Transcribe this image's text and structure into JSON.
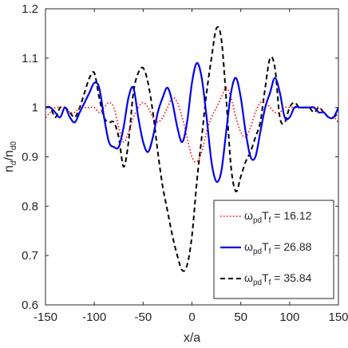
{
  "chart_data": {
    "type": "line",
    "xlabel": "x/a",
    "ylabel": "n_d/n_d0",
    "ylabel_main": "n",
    "ylabel_sub": "d",
    "ylabel_sep": "/n",
    "ylabel_sub2": "d0",
    "xlim": [
      -150,
      150
    ],
    "ylim": [
      0.6,
      1.2
    ],
    "xticks": [
      -150,
      -100,
      -50,
      0,
      50,
      100,
      150
    ],
    "yticks": [
      0.6,
      0.7,
      0.8,
      0.9,
      1.0,
      1.1,
      1.2
    ],
    "xtick_labels": [
      "-150",
      "-100",
      "-50",
      "0",
      "50",
      "100",
      "150"
    ],
    "ytick_labels": [
      "0.6",
      "0.7",
      "0.8",
      "0.9",
      "1",
      "1.1",
      "1.2"
    ],
    "grid": false,
    "legend_position": "bottom-right",
    "series": [
      {
        "name": "ω_pd T_f = 16.12",
        "legend_main": "ω",
        "legend_sub1": "pd",
        "legend_mid": "T",
        "legend_sub2": "f",
        "legend_value": "= 16.12",
        "color": "#ff0000",
        "style": "dotted",
        "x": [
          -150,
          -145,
          -140,
          -135,
          -130,
          -125,
          -120,
          -115,
          -110,
          -105,
          -100,
          -95,
          -90,
          -85,
          -80,
          -75,
          -70,
          -65,
          -60,
          -55,
          -50,
          -45,
          -40,
          -35,
          -30,
          -25,
          -20,
          -15,
          -10,
          -5,
          0,
          5,
          10,
          15,
          20,
          25,
          30,
          35,
          40,
          45,
          50,
          55,
          60,
          65,
          70,
          75,
          80,
          85,
          90,
          95,
          100,
          105,
          110,
          115,
          120,
          125,
          130,
          135,
          140,
          145,
          150
        ],
        "y": [
          0.98,
          0.99,
          1.0,
          1.0,
          1.0,
          0.99,
          0.99,
          1.0,
          1.0,
          1.0,
          1.0,
          0.99,
          1.0,
          1.01,
          1.0,
          0.96,
          0.93,
          0.95,
          0.98,
          1.0,
          1.01,
          1.0,
          0.98,
          0.97,
          0.98,
          1.0,
          1.02,
          1.01,
          0.98,
          0.94,
          0.9,
          0.89,
          0.91,
          0.95,
          0.98,
          1.0,
          1.02,
          1.04,
          1.02,
          0.98,
          0.95,
          0.94,
          0.96,
          0.99,
          1.01,
          1.01,
          1.0,
          0.99,
          0.99,
          1.0,
          1.0,
          1.0,
          1.0,
          1.0,
          1.0,
          1.0,
          1.0,
          0.99,
          0.98,
          0.98,
          0.97
        ]
      },
      {
        "name": "ω_pd T_f = 26.88",
        "legend_main": "ω",
        "legend_sub1": "pd",
        "legend_mid": "T",
        "legend_sub2": "f",
        "legend_value": "= 26.88",
        "color": "#0000ee",
        "style": "solid",
        "x": [
          -150,
          -145,
          -140,
          -135,
          -130,
          -125,
          -120,
          -115,
          -110,
          -105,
          -100,
          -95,
          -90,
          -85,
          -80,
          -75,
          -70,
          -65,
          -60,
          -55,
          -50,
          -45,
          -40,
          -35,
          -30,
          -25,
          -20,
          -15,
          -10,
          -5,
          0,
          5,
          10,
          15,
          20,
          25,
          30,
          35,
          40,
          45,
          50,
          55,
          60,
          65,
          70,
          75,
          80,
          85,
          90,
          95,
          100,
          105,
          110,
          115,
          120,
          125,
          130,
          135,
          140,
          145,
          150
        ],
        "y": [
          1.0,
          1.0,
          0.99,
          0.98,
          1.0,
          0.98,
          0.97,
          0.99,
          1.01,
          1.03,
          1.05,
          1.04,
          0.98,
          0.93,
          0.92,
          0.92,
          0.96,
          1.02,
          1.04,
          0.98,
          0.93,
          0.91,
          0.94,
          0.99,
          1.02,
          1.04,
          1.01,
          0.96,
          0.93,
          0.97,
          1.05,
          1.09,
          1.06,
          0.98,
          0.89,
          0.85,
          0.87,
          0.95,
          1.03,
          1.06,
          1.02,
          0.95,
          0.9,
          0.9,
          0.95,
          1.0,
          1.03,
          1.06,
          1.03,
          0.98,
          0.98,
          1.0,
          1.0,
          1.0,
          1.0,
          1.0,
          0.99,
          0.99,
          0.98,
          0.98,
          1.0
        ]
      },
      {
        "name": "ω_pd T_f = 35.84",
        "legend_main": "ω",
        "legend_sub1": "pd",
        "legend_mid": "T",
        "legend_sub2": "f",
        "legend_value": "= 35.84",
        "color": "#000000",
        "style": "dashed",
        "x": [
          -150,
          -145,
          -140,
          -135,
          -130,
          -125,
          -120,
          -115,
          -110,
          -105,
          -100,
          -95,
          -90,
          -85,
          -80,
          -75,
          -70,
          -65,
          -60,
          -55,
          -50,
          -45,
          -40,
          -35,
          -30,
          -25,
          -20,
          -15,
          -10,
          -5,
          0,
          5,
          10,
          15,
          20,
          25,
          30,
          35,
          40,
          45,
          50,
          55,
          60,
          65,
          70,
          75,
          80,
          85,
          90,
          95,
          100,
          105,
          110,
          115,
          120,
          125,
          130,
          135,
          140,
          145,
          150
        ],
        "y": [
          1.0,
          1.0,
          0.98,
          1.0,
          1.0,
          0.99,
          0.98,
          1.0,
          1.03,
          1.06,
          1.07,
          1.02,
          0.98,
          0.97,
          0.97,
          0.94,
          0.88,
          0.93,
          1.03,
          1.07,
          1.08,
          1.05,
          0.99,
          0.91,
          0.84,
          0.79,
          0.74,
          0.7,
          0.67,
          0.68,
          0.74,
          0.85,
          0.94,
          1.03,
          1.1,
          1.16,
          1.14,
          1.02,
          0.88,
          0.83,
          0.86,
          0.89,
          0.91,
          0.94,
          0.97,
          1.04,
          1.1,
          1.08,
          0.98,
          0.97,
          1.0,
          1.01,
          1.0,
          1.0,
          1.0,
          0.99,
          1.0,
          0.99,
          0.98,
          0.98,
          0.99
        ]
      }
    ]
  }
}
